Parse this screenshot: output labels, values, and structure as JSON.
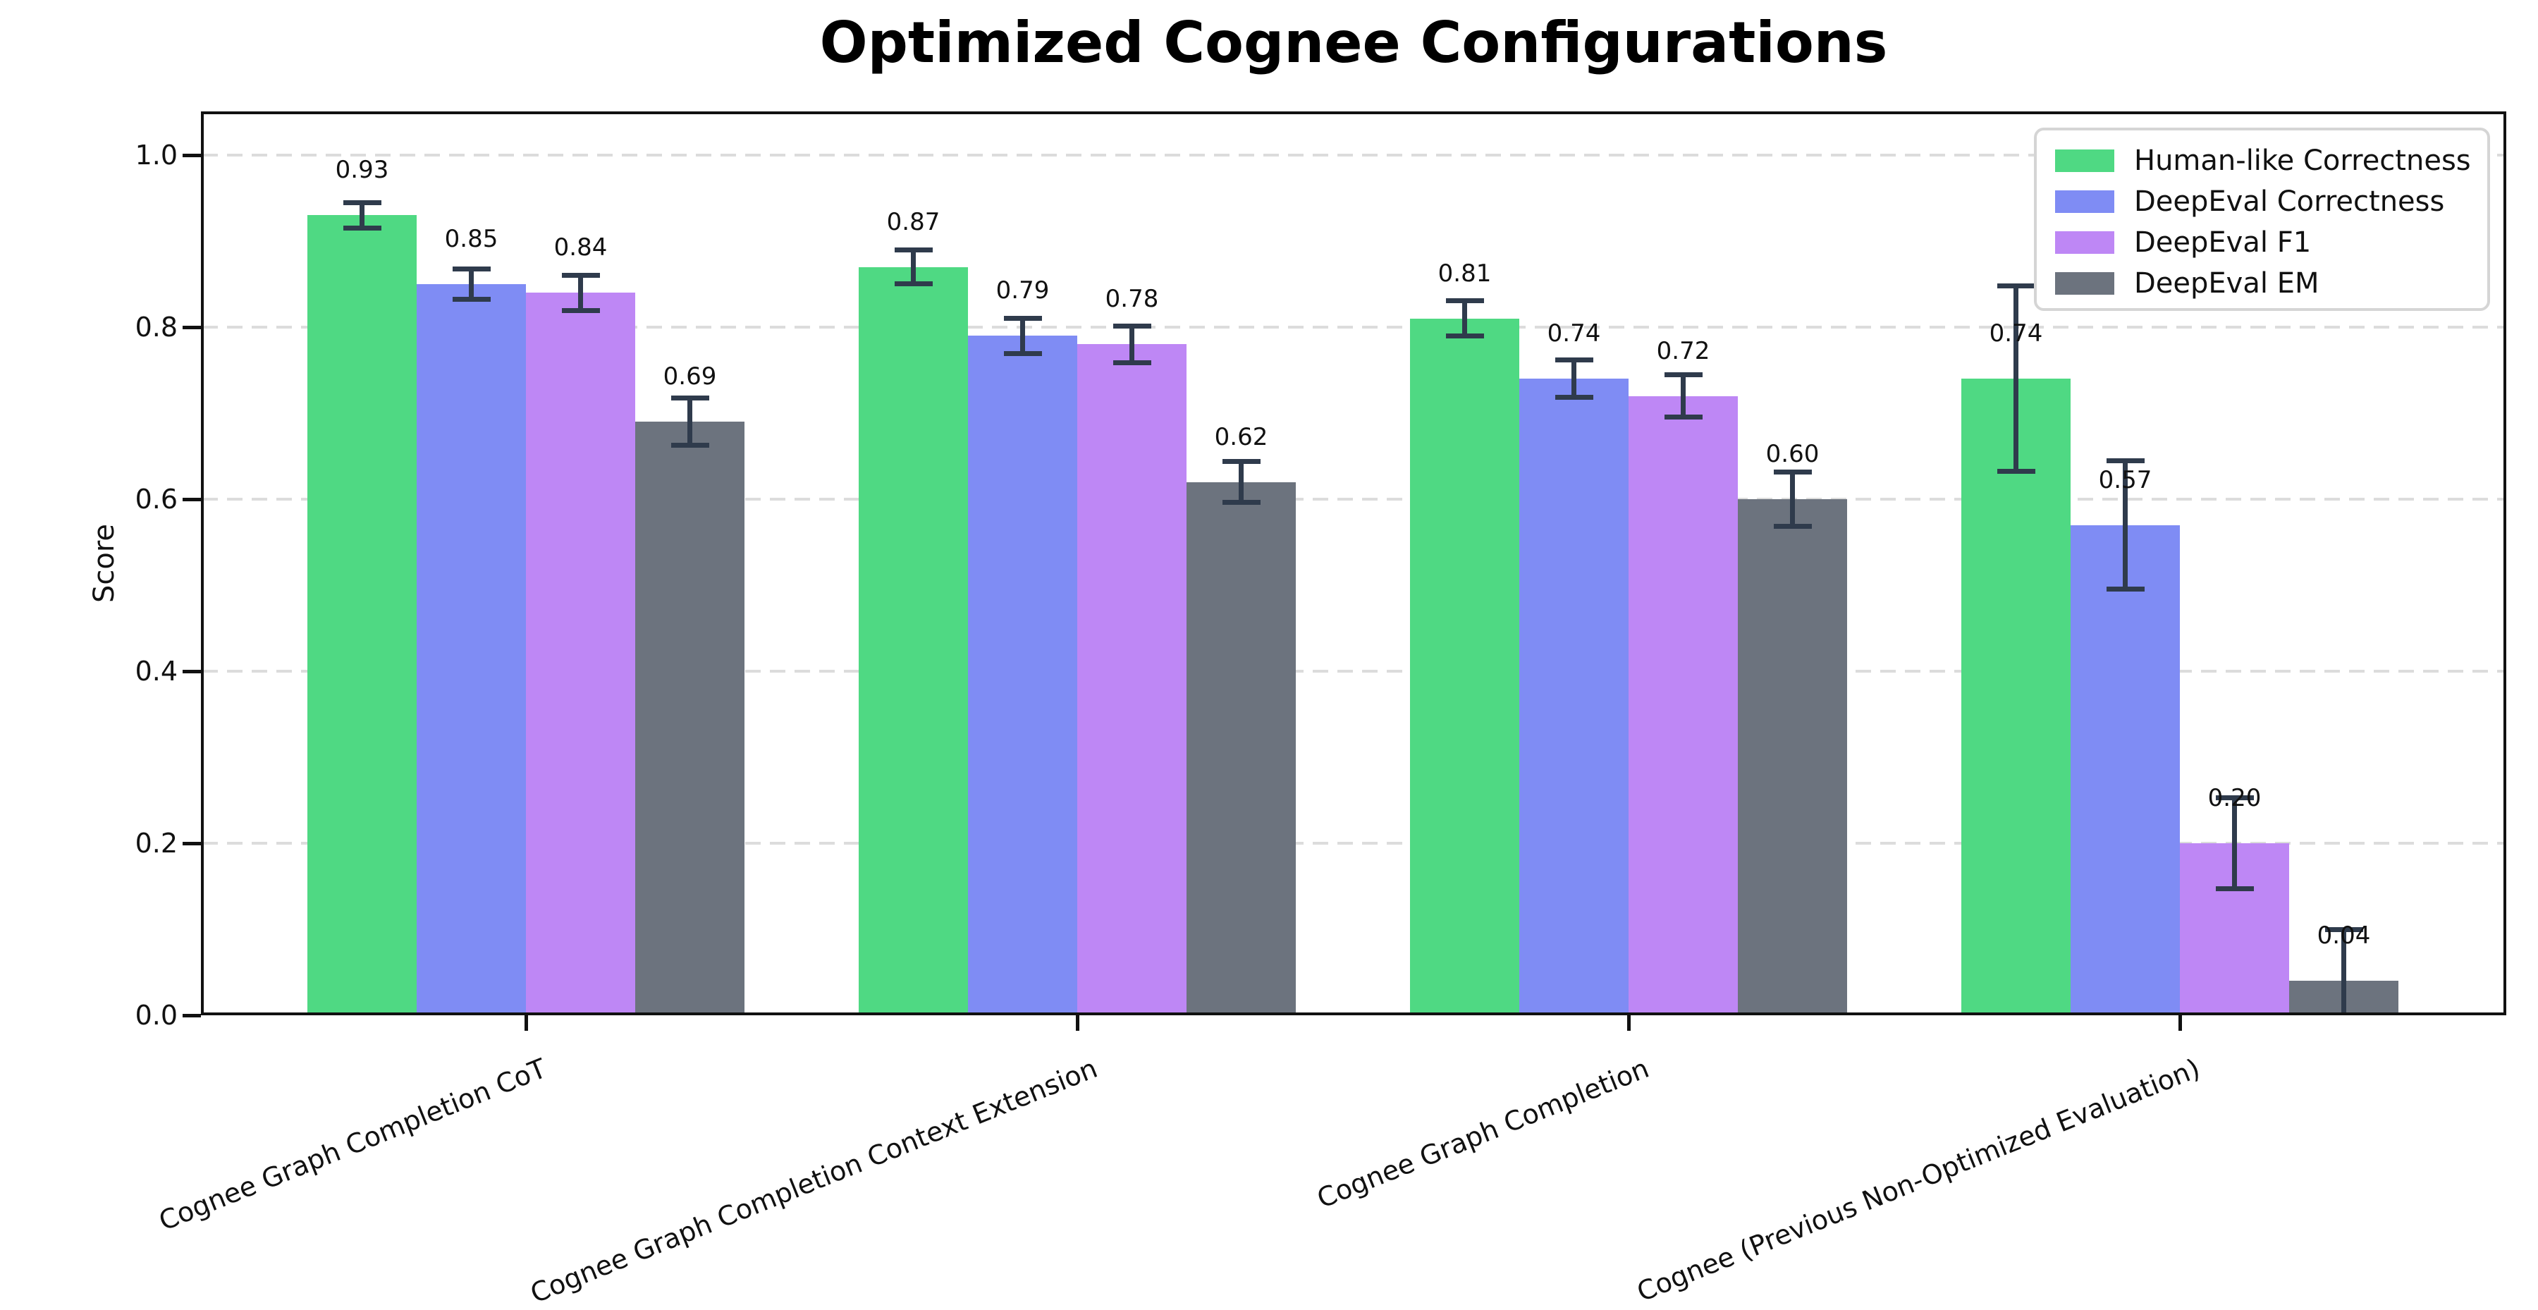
{
  "figure": {
    "background": "#ffffff"
  },
  "chart_data": {
    "type": "bar",
    "title": "Optimized Cognee Configurations",
    "ylabel": "Score",
    "xlabel": "",
    "ylim": [
      0,
      1.05
    ],
    "yticks": [
      "0.0",
      "0.2",
      "0.4",
      "0.6",
      "0.8",
      "1.0"
    ],
    "grid": "horizontal dashed gridlines at 0.2 intervals",
    "legend_position": "upper right",
    "bar_label_format": "two decimals",
    "error_bars": true,
    "error_bar_color": "#2f3b4c",
    "categories": [
      "Cognee Graph Completion CoT",
      "Cognee Graph Completion Context Extension",
      "Cognee Graph Completion",
      "Cognee (Previous Non-Optimized Evaluation)"
    ],
    "series": [
      {
        "name": "Human-like Correctness",
        "color": "#4fd983",
        "values": [
          0.93,
          0.87,
          0.81,
          0.74
        ],
        "errors": [
          0.015,
          0.02,
          0.021,
          0.108
        ]
      },
      {
        "name": "DeepEval Correctness",
        "color": "#7f8cf4",
        "values": [
          0.85,
          0.79,
          0.74,
          0.57
        ],
        "errors": [
          0.018,
          0.021,
          0.022,
          0.075
        ]
      },
      {
        "name": "DeepEval F1",
        "color": "#be87f5",
        "values": [
          0.84,
          0.78,
          0.72,
          0.2
        ],
        "errors": [
          0.021,
          0.022,
          0.025,
          0.053
        ]
      },
      {
        "name": "DeepEval EM",
        "color": "#6c737e",
        "values": [
          0.69,
          0.62,
          0.6,
          0.04
        ],
        "errors": [
          0.028,
          0.024,
          0.032,
          0.06
        ]
      }
    ]
  }
}
